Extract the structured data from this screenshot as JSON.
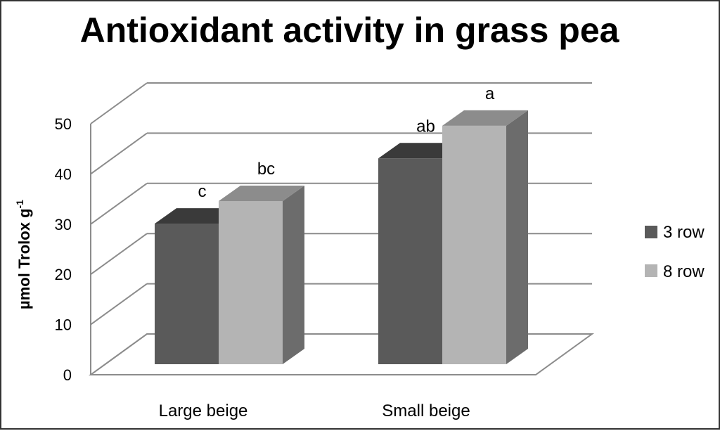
{
  "chart_data": {
    "type": "bar",
    "style": "3d-clustered-column",
    "title": "Antioxidant activity in grass pea",
    "xlabel": "",
    "ylabel": "µmol Trolox g",
    "ylabel_superscript": "-1",
    "ylim": [
      0,
      50
    ],
    "yticks": [
      "0",
      "10",
      "20",
      "30",
      "40",
      "50"
    ],
    "grid": true,
    "legend_position": "right",
    "categories": [
      "Large beige",
      "Small beige"
    ],
    "series": [
      {
        "name": "3 row",
        "color": "#5a5a5a",
        "values": [
          28,
          41
        ],
        "labels": [
          "c",
          "ab"
        ]
      },
      {
        "name": "8 row",
        "color": "#b4b4b4",
        "values": [
          32.5,
          47.5
        ],
        "labels": [
          "bc",
          "a"
        ]
      }
    ],
    "colors": {
      "grid": "#8c8c8c",
      "axis": "#8c8c8c",
      "dark_front": "#5a5a5a",
      "dark_side": "#444444",
      "dark_top": "#3a3a3a",
      "light_front": "#b4b4b4",
      "light_side": "#6c6c6c",
      "light_top": "#8c8c8c"
    }
  }
}
